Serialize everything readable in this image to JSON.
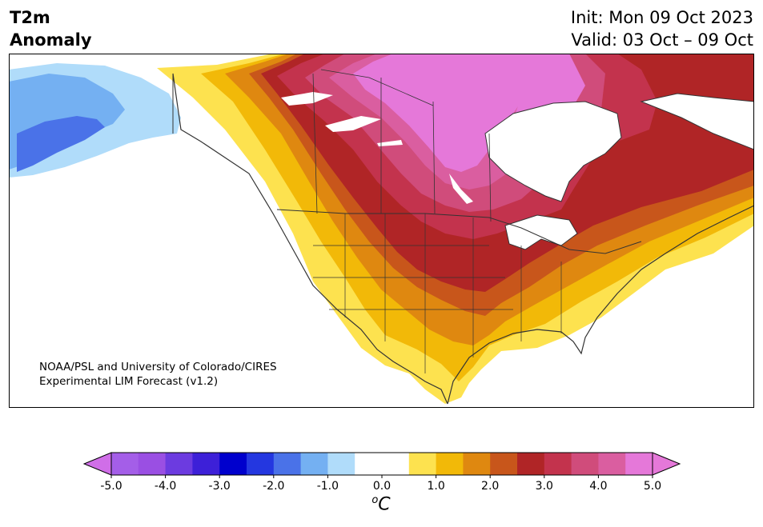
{
  "title": {
    "left_line1": "T2m",
    "left_line2": "Anomaly",
    "right_line1": "Init: Mon 09 Oct 2023",
    "right_line2": "Valid: 03 Oct – 09 Oct"
  },
  "credit": {
    "line1": "NOAA/PSL and University of Colorado/CIRES",
    "line2": "Experimental LIM Forecast (v1.2)"
  },
  "colorbar": {
    "unit_base": "C",
    "unit_sup": "o",
    "ticks": [
      "-5.0",
      "-4.0",
      "-3.0",
      "-2.0",
      "-1.0",
      "0.0",
      "1.0",
      "2.0",
      "3.0",
      "4.0",
      "5.0"
    ],
    "tick_values": [
      -5,
      -4,
      -3,
      -2,
      -1,
      0,
      1,
      2,
      3,
      4,
      5
    ],
    "bins": [
      {
        "from": -5.0,
        "to": -4.5,
        "color": "#a45ee8"
      },
      {
        "from": -4.5,
        "to": -4.0,
        "color": "#9a4fe3"
      },
      {
        "from": -4.0,
        "to": -3.5,
        "color": "#6c3be0"
      },
      {
        "from": -3.5,
        "to": -3.0,
        "color": "#3d20d8"
      },
      {
        "from": -3.0,
        "to": -2.5,
        "color": "#0000cd"
      },
      {
        "from": -2.5,
        "to": -2.0,
        "color": "#2437e0"
      },
      {
        "from": -2.0,
        "to": -1.5,
        "color": "#4a72e8"
      },
      {
        "from": -1.5,
        "to": -1.0,
        "color": "#74b0f2"
      },
      {
        "from": -1.0,
        "to": -0.5,
        "color": "#b0dcfa"
      },
      {
        "from": -0.5,
        "to": 0.5,
        "color": "#ffffff"
      },
      {
        "from": 0.5,
        "to": 1.0,
        "color": "#fde24f"
      },
      {
        "from": 1.0,
        "to": 1.5,
        "color": "#f2b908"
      },
      {
        "from": 1.5,
        "to": 2.0,
        "color": "#df8810"
      },
      {
        "from": 2.0,
        "to": 2.5,
        "color": "#c8561b"
      },
      {
        "from": 2.5,
        "to": 3.0,
        "color": "#b02526"
      },
      {
        "from": 3.0,
        "to": 3.5,
        "color": "#c3334d"
      },
      {
        "from": 3.5,
        "to": 4.0,
        "color": "#d04c7b"
      },
      {
        "from": 4.0,
        "to": 4.5,
        "color": "#da5ea0"
      },
      {
        "from": 4.5,
        "to": 5.0,
        "color": "#e578d9"
      }
    ],
    "under_color": "#d06ee8",
    "over_color": "#e578d9"
  }
}
